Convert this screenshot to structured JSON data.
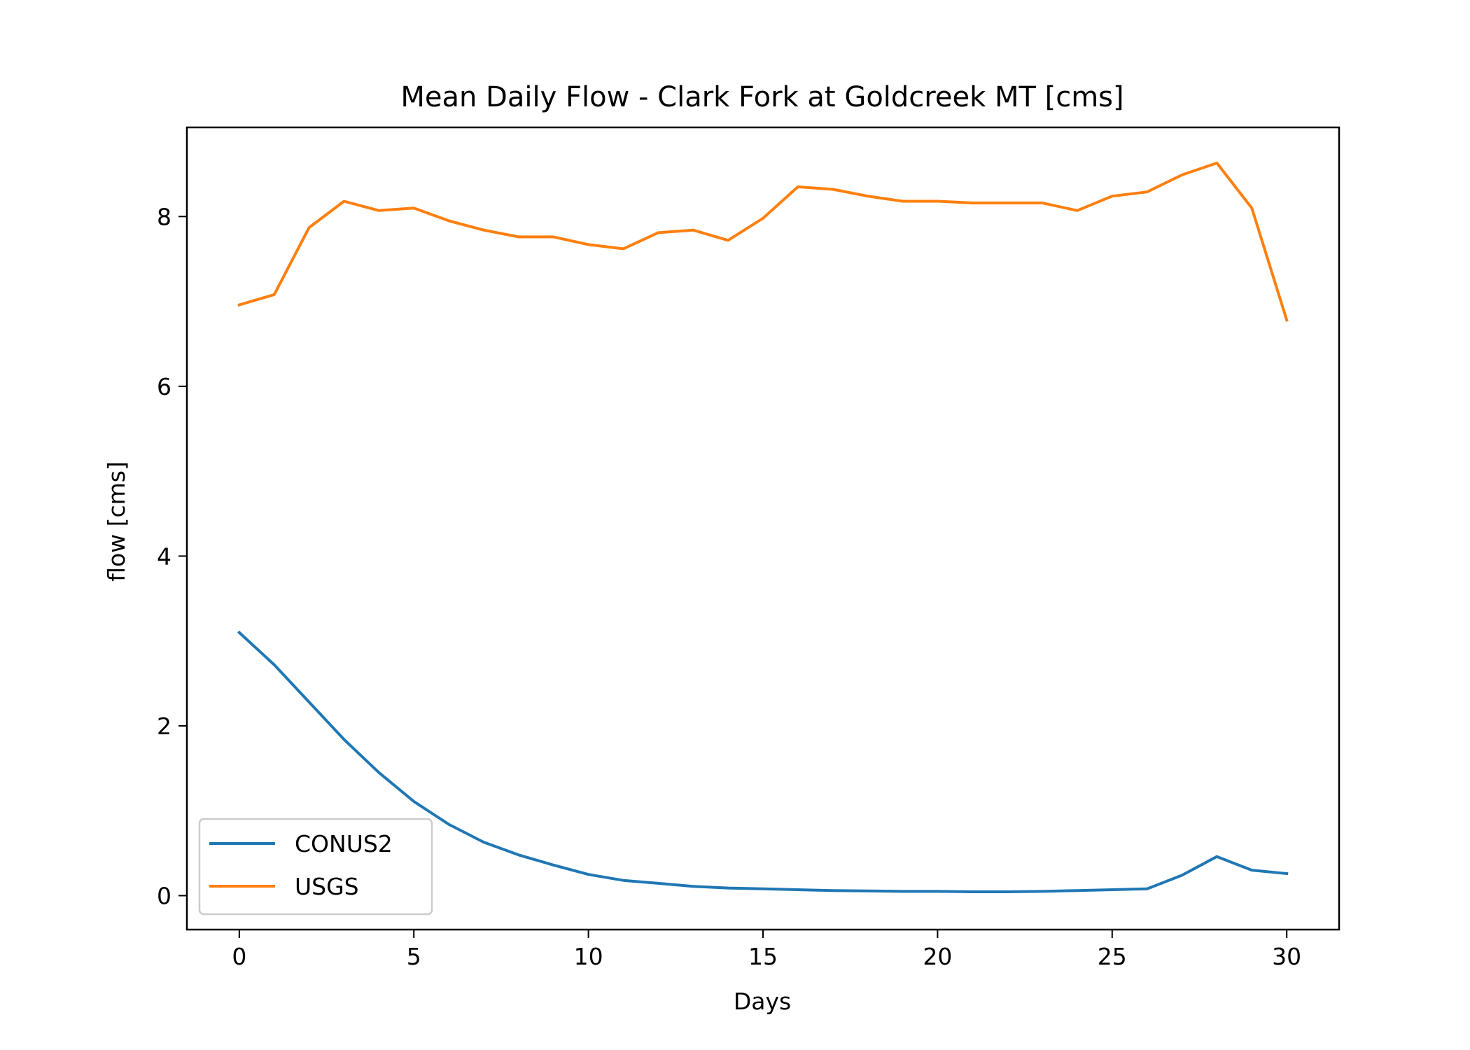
{
  "chart_data": {
    "type": "line",
    "title": "Mean Daily Flow - Clark Fork at Goldcreek MT [cms]",
    "xlabel": "Days",
    "ylabel": "flow [cms]",
    "xlim": [
      -1.5,
      31.5
    ],
    "ylim": [
      -0.4,
      9.05
    ],
    "xticks": [
      0,
      5,
      10,
      15,
      20,
      25,
      30
    ],
    "yticks": [
      0,
      2,
      4,
      6,
      8
    ],
    "grid": false,
    "legend_position": "lower-left",
    "x": [
      0,
      1,
      2,
      3,
      4,
      5,
      6,
      7,
      8,
      9,
      10,
      11,
      12,
      13,
      14,
      15,
      16,
      17,
      18,
      19,
      20,
      21,
      22,
      23,
      24,
      25,
      26,
      27,
      28,
      29,
      30
    ],
    "series": [
      {
        "name": "CONUS2",
        "color": "#1f77b4",
        "values": [
          3.1,
          2.72,
          2.28,
          1.84,
          1.45,
          1.11,
          0.84,
          0.63,
          0.48,
          0.36,
          0.25,
          0.18,
          0.145,
          0.11,
          0.09,
          0.08,
          0.07,
          0.06,
          0.055,
          0.05,
          0.05,
          0.045,
          0.045,
          0.05,
          0.06,
          0.07,
          0.08,
          0.24,
          0.46,
          0.3,
          0.26
        ]
      },
      {
        "name": "USGS",
        "color": "#ff7f0e",
        "values": [
          6.96,
          7.08,
          7.87,
          8.18,
          8.07,
          8.1,
          7.95,
          7.84,
          7.76,
          7.76,
          7.67,
          7.62,
          7.81,
          7.84,
          7.72,
          7.98,
          8.35,
          8.32,
          8.24,
          8.18,
          8.18,
          8.16,
          8.16,
          8.16,
          8.07,
          8.24,
          8.29,
          8.49,
          8.63,
          8.1,
          6.78
        ]
      }
    ]
  }
}
